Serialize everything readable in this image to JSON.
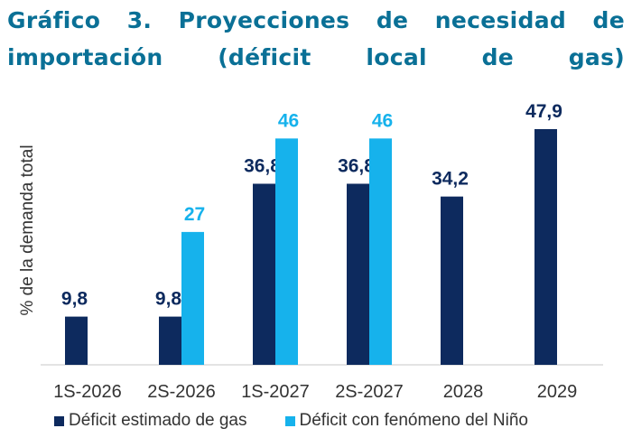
{
  "chart_data": {
    "type": "bar",
    "title": "Gráfico 3. Proyecciones de necesidad de importación (déficit local de gas)",
    "ylabel": "% de la demanda total",
    "xlabel": "",
    "categories": [
      "1S-2026",
      "2S-2026",
      "1S-2027",
      "2S-2027",
      "2028",
      "2029"
    ],
    "series": [
      {
        "name": "Déficit estimado de gas",
        "color": "#0d2a5e",
        "values": [
          9.8,
          9.8,
          36.8,
          36.8,
          34.2,
          47.9
        ],
        "labels": [
          "9,8",
          "9,8",
          "36,8",
          "36,8",
          "34,2",
          "47,9"
        ]
      },
      {
        "name": "Déficit con fenómeno del Niño",
        "color": "#16b2ec",
        "values": [
          null,
          27,
          46,
          46,
          null,
          null
        ],
        "labels": [
          "",
          "27",
          "46",
          "46",
          "",
          ""
        ]
      }
    ],
    "ylim": [
      0,
      50
    ],
    "grid": false,
    "legend_position": "bottom"
  }
}
